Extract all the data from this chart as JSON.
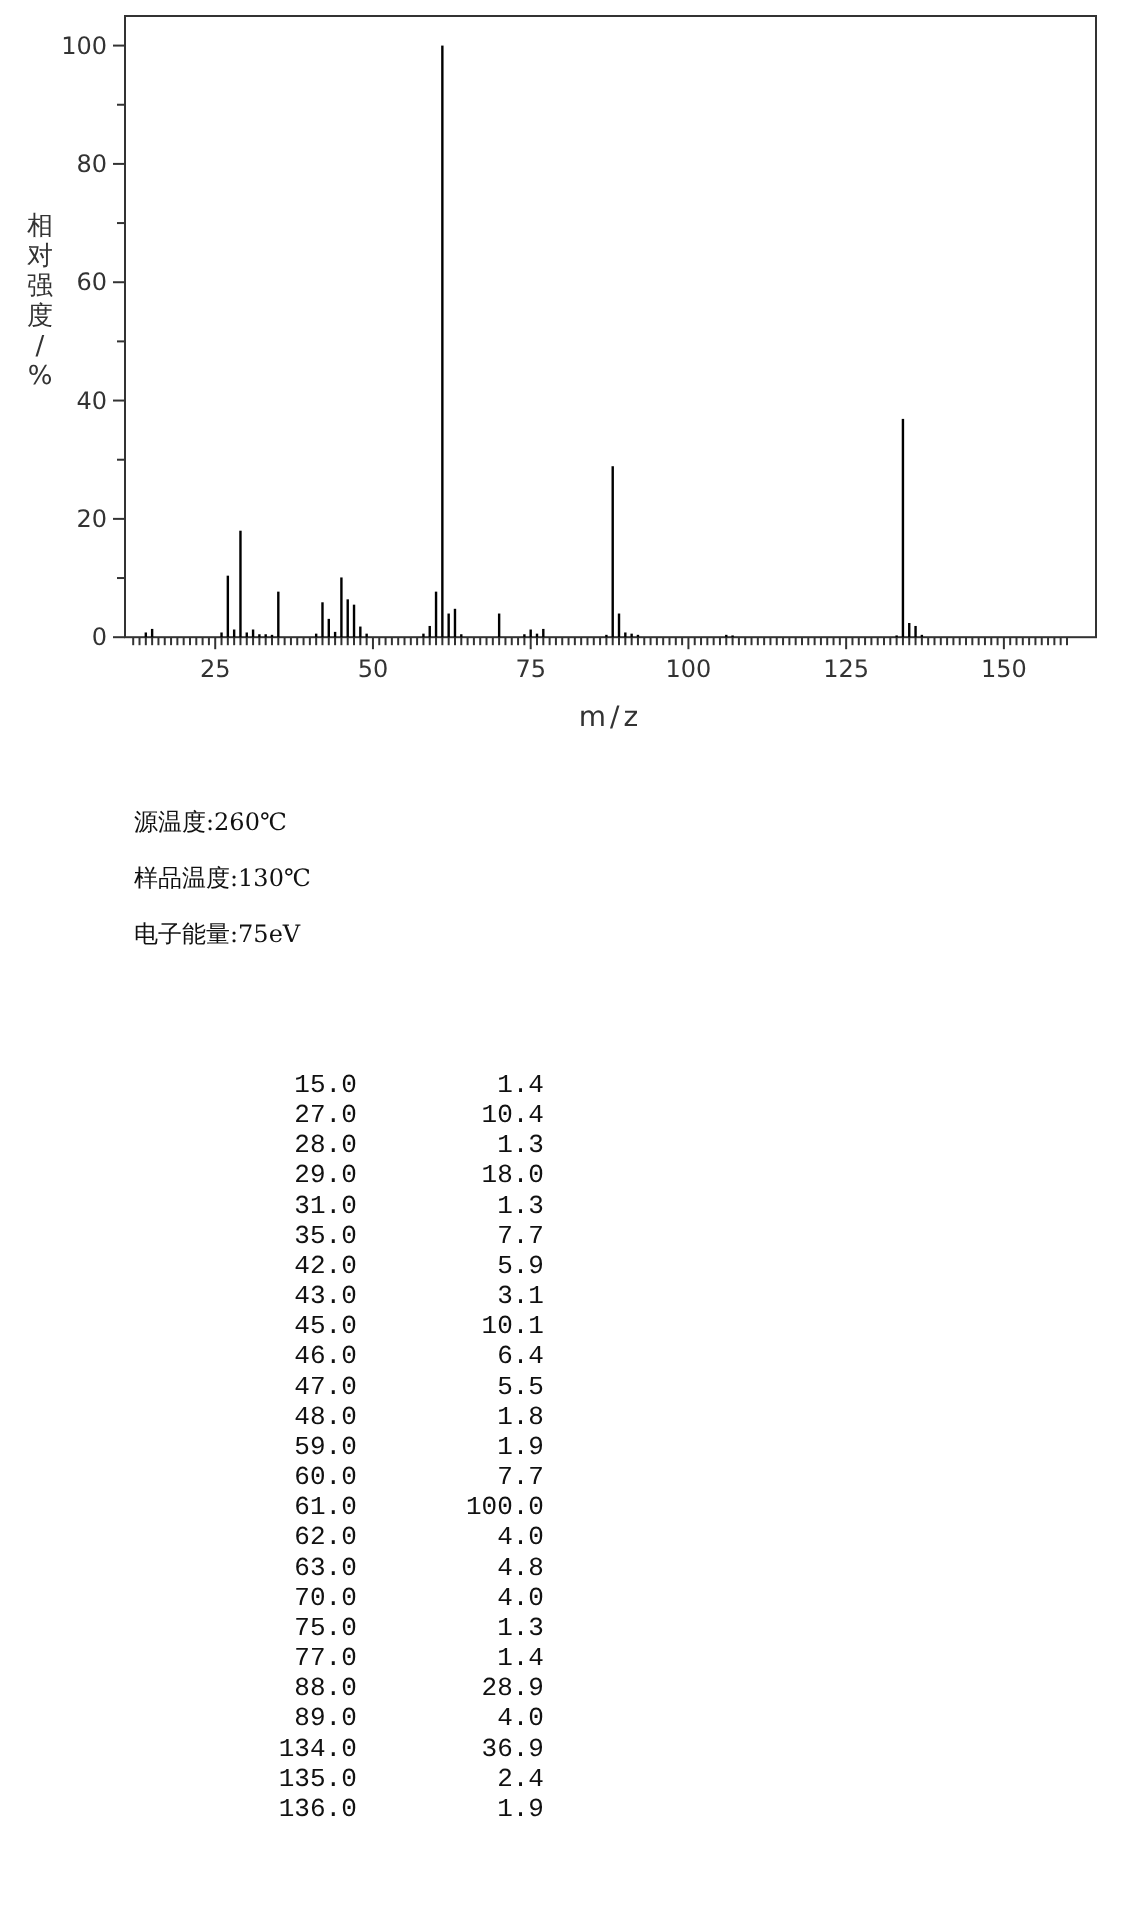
{
  "chart_data": {
    "type": "bar",
    "xlabel": "m/z",
    "ylabel": "相对强度/%",
    "x": [
      14,
      15,
      26,
      27,
      28,
      29,
      30,
      31,
      32,
      33,
      34,
      35,
      41,
      42,
      43,
      44,
      45,
      46,
      47,
      48,
      49,
      58,
      59,
      60,
      61,
      62,
      63,
      64,
      70,
      74,
      75,
      76,
      77,
      87,
      88,
      89,
      90,
      91,
      92,
      106,
      107,
      133,
      134,
      135,
      136,
      137
    ],
    "values": [
      0.8,
      1.4,
      0.8,
      10.4,
      1.3,
      18.0,
      0.8,
      1.3,
      0.5,
      0.5,
      0.4,
      7.7,
      0.6,
      5.9,
      3.1,
      0.9,
      10.1,
      6.4,
      5.5,
      1.8,
      0.6,
      0.6,
      1.9,
      7.7,
      100.0,
      4.0,
      4.8,
      0.5,
      4.0,
      0.5,
      1.3,
      0.6,
      1.4,
      0.4,
      28.9,
      4.0,
      0.8,
      0.6,
      0.4,
      0.4,
      0.3,
      0.3,
      36.9,
      2.4,
      1.9,
      0.4
    ],
    "color": "#000000",
    "xlim": [
      10.7,
      164.6
    ],
    "ylim": [
      0,
      105
    ],
    "xticks": [
      {
        "value": 12,
        "label": null
      },
      {
        "value": 13,
        "label": null
      },
      {
        "value": 14,
        "label": null
      },
      {
        "value": 15,
        "label": null
      },
      {
        "value": 16,
        "label": null
      },
      {
        "value": 17,
        "label": null
      },
      {
        "value": 18,
        "label": null
      },
      {
        "value": 19,
        "label": null
      },
      {
        "value": 20,
        "label": null
      },
      {
        "value": 21,
        "label": null
      },
      {
        "value": 22,
        "label": null
      },
      {
        "value": 23,
        "label": null
      },
      {
        "value": 24,
        "label": null
      },
      25,
      {
        "value": 26,
        "label": null
      },
      {
        "value": 27,
        "label": null
      },
      {
        "value": 28,
        "label": null
      },
      {
        "value": 29,
        "label": null
      },
      {
        "value": 30,
        "label": null
      },
      {
        "value": 31,
        "label": null
      },
      {
        "value": 32,
        "label": null
      },
      {
        "value": 33,
        "label": null
      },
      {
        "value": 34,
        "label": null
      },
      {
        "value": 35,
        "label": null
      },
      {
        "value": 36,
        "label": null
      },
      {
        "value": 37,
        "label": null
      },
      {
        "value": 38,
        "label": null
      },
      {
        "value": 39,
        "label": null
      },
      {
        "value": 40,
        "label": null
      },
      {
        "value": 41,
        "label": null
      },
      {
        "value": 42,
        "label": null
      },
      {
        "value": 43,
        "label": null
      },
      {
        "value": 44,
        "label": null
      },
      {
        "value": 45,
        "label": null
      },
      {
        "value": 46,
        "label": null
      },
      {
        "value": 47,
        "label": null
      },
      {
        "value": 48,
        "label": null
      },
      {
        "value": 49,
        "label": null
      },
      50,
      {
        "value": 51,
        "label": null
      },
      {
        "value": 52,
        "label": null
      },
      {
        "value": 53,
        "label": null
      },
      {
        "value": 54,
        "label": null
      },
      {
        "value": 55,
        "label": null
      },
      {
        "value": 56,
        "label": null
      },
      {
        "value": 57,
        "label": null
      },
      {
        "value": 58,
        "label": null
      },
      {
        "value": 59,
        "label": null
      },
      {
        "value": 60,
        "label": null
      },
      {
        "value": 61,
        "label": null
      },
      {
        "value": 62,
        "label": null
      },
      {
        "value": 63,
        "label": null
      },
      {
        "value": 64,
        "label": null
      },
      {
        "value": 65,
        "label": null
      },
      {
        "value": 66,
        "label": null
      },
      {
        "value": 67,
        "label": null
      },
      {
        "value": 68,
        "label": null
      },
      {
        "value": 69,
        "label": null
      },
      {
        "value": 70,
        "label": null
      },
      {
        "value": 71,
        "label": null
      },
      {
        "value": 72,
        "label": null
      },
      {
        "value": 73,
        "label": null
      },
      {
        "value": 74,
        "label": null
      },
      75,
      {
        "value": 76,
        "label": null
      },
      {
        "value": 77,
        "label": null
      },
      {
        "value": 78,
        "label": null
      },
      {
        "value": 79,
        "label": null
      },
      {
        "value": 80,
        "label": null
      },
      {
        "value": 81,
        "label": null
      },
      {
        "value": 82,
        "label": null
      },
      {
        "value": 83,
        "label": null
      },
      {
        "value": 84,
        "label": null
      },
      {
        "value": 85,
        "label": null
      },
      {
        "value": 86,
        "label": null
      },
      {
        "value": 87,
        "label": null
      },
      {
        "value": 88,
        "label": null
      },
      {
        "value": 89,
        "label": null
      },
      {
        "value": 90,
        "label": null
      },
      {
        "value": 91,
        "label": null
      },
      {
        "value": 92,
        "label": null
      },
      {
        "value": 93,
        "label": null
      },
      {
        "value": 94,
        "label": null
      },
      {
        "value": 95,
        "label": null
      },
      {
        "value": 96,
        "label": null
      },
      {
        "value": 97,
        "label": null
      },
      {
        "value": 98,
        "label": null
      },
      {
        "value": 99,
        "label": null
      },
      100,
      {
        "value": 101,
        "label": null
      },
      {
        "value": 102,
        "label": null
      },
      {
        "value": 103,
        "label": null
      },
      {
        "value": 104,
        "label": null
      },
      {
        "value": 105,
        "label": null
      },
      {
        "value": 106,
        "label": null
      },
      {
        "value": 107,
        "label": null
      },
      {
        "value": 108,
        "label": null
      },
      {
        "value": 109,
        "label": null
      },
      {
        "value": 110,
        "label": null
      },
      {
        "value": 111,
        "label": null
      },
      {
        "value": 112,
        "label": null
      },
      {
        "value": 113,
        "label": null
      },
      {
        "value": 114,
        "label": null
      },
      {
        "value": 115,
        "label": null
      },
      {
        "value": 116,
        "label": null
      },
      {
        "value": 117,
        "label": null
      },
      {
        "value": 118,
        "label": null
      },
      {
        "value": 119,
        "label": null
      },
      {
        "value": 120,
        "label": null
      },
      {
        "value": 121,
        "label": null
      },
      {
        "value": 122,
        "label": null
      },
      {
        "value": 123,
        "label": null
      },
      {
        "value": 124,
        "label": null
      },
      125,
      {
        "value": 126,
        "label": null
      },
      {
        "value": 127,
        "label": null
      },
      {
        "value": 128,
        "label": null
      },
      {
        "value": 129,
        "label": null
      },
      {
        "value": 130,
        "label": null
      },
      {
        "value": 131,
        "label": null
      },
      {
        "value": 132,
        "label": null
      },
      {
        "value": 133,
        "label": null
      },
      {
        "value": 134,
        "label": null
      },
      {
        "value": 135,
        "label": null
      },
      {
        "value": 136,
        "label": null
      },
      {
        "value": 137,
        "label": null
      },
      {
        "value": 138,
        "label": null
      },
      {
        "value": 139,
        "label": null
      },
      {
        "value": 140,
        "label": null
      },
      {
        "value": 141,
        "label": null
      },
      {
        "value": 142,
        "label": null
      },
      {
        "value": 143,
        "label": null
      },
      {
        "value": 144,
        "label": null
      },
      {
        "value": 145,
        "label": null
      },
      {
        "value": 146,
        "label": null
      },
      {
        "value": 147,
        "label": null
      },
      {
        "value": 148,
        "label": null
      },
      {
        "value": 149,
        "label": null
      },
      150,
      {
        "value": 151,
        "label": null
      },
      {
        "value": 152,
        "label": null
      },
      {
        "value": 153,
        "label": null
      },
      {
        "value": 154,
        "label": null
      },
      {
        "value": 155,
        "label": null
      },
      {
        "value": 156,
        "label": null
      },
      {
        "value": 157,
        "label": null
      },
      {
        "value": 158,
        "label": null
      },
      {
        "value": 159,
        "label": null
      },
      {
        "value": 160,
        "label": null
      }
    ],
    "yticks": [
      0,
      {
        "value": 10,
        "label": null
      },
      20,
      {
        "value": 30,
        "label": null
      },
      40,
      {
        "value": 50,
        "label": null
      },
      60,
      {
        "value": 70,
        "label": null
      },
      80,
      {
        "value": 90,
        "label": null
      },
      100
    ],
    "grid": false,
    "annotations": [
      "源温度:260℃",
      "样品温度:130℃",
      "电子能量:75eV",
      "  15.0         1.4",
      "  27.0        10.4",
      "  28.0         1.3",
      "  29.0        18.0",
      "  31.0         1.3",
      "  35.0         7.7",
      "  42.0         5.9",
      "  43.0         3.1",
      "  45.0        10.1",
      "  46.0         6.4",
      "  47.0         5.5",
      "  48.0         1.8",
      "  59.0         1.9",
      "  60.0         7.7",
      "  61.0       100.0",
      "  62.0         4.0",
      "  63.0         4.8",
      "  70.0         4.0",
      "  75.0         1.3",
      "  77.0         1.4",
      "  88.0        28.9",
      "  89.0         4.0",
      " 134.0        36.9",
      " 135.0         2.4",
      " 136.0         1.9"
    ]
  }
}
